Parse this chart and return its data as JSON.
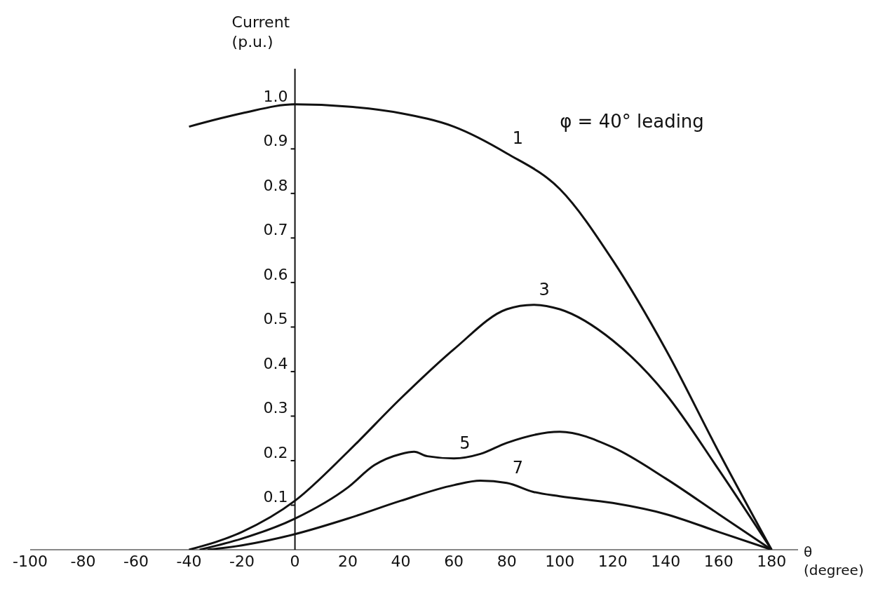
{
  "chart_data": {
    "type": "line",
    "xlabel": "θ (degree)",
    "ylabel": "Current (p.u.)",
    "annotations": [
      "φ = 40° leading"
    ],
    "xlim": [
      -100,
      190
    ],
    "xticks": [
      -100,
      -80,
      -60,
      -40,
      -20,
      0,
      20,
      40,
      60,
      80,
      100,
      120,
      140,
      160,
      180
    ],
    "ylim": [
      0,
      1.08
    ],
    "yticks": [
      0.1,
      0.2,
      0.3,
      0.4,
      0.5,
      0.6,
      0.7,
      0.8,
      0.9,
      {
        "value": 1,
        "label": "1.0"
      }
    ],
    "grid": false,
    "legend": false,
    "marker": "none",
    "line_style": "solid",
    "series": [
      {
        "name": "1",
        "color": "#111111",
        "x": [
          -40,
          -20,
          0,
          20,
          40,
          60,
          80,
          100,
          120,
          140,
          160,
          180
        ],
        "values": [
          0.95,
          0.98,
          1.0,
          0.995,
          0.98,
          0.95,
          0.89,
          0.81,
          0.65,
          0.45,
          0.22,
          0
        ]
      },
      {
        "name": "3",
        "color": "#111111",
        "x": [
          -40,
          -20,
          0,
          20,
          40,
          60,
          80,
          90,
          100,
          120,
          140,
          160,
          180
        ],
        "values": [
          0,
          0.04,
          0.11,
          0.22,
          0.34,
          0.45,
          0.54,
          0.55,
          0.54,
          0.47,
          0.35,
          0.18,
          0
        ]
      },
      {
        "name": "5",
        "color": "#111111",
        "x": [
          -36,
          -20,
          0,
          20,
          30,
          40,
          45,
          50,
          60,
          70,
          80,
          100,
          120,
          140,
          160,
          180
        ],
        "values": [
          0,
          0.025,
          0.07,
          0.14,
          0.19,
          0.215,
          0.22,
          0.21,
          0.205,
          0.215,
          0.24,
          0.265,
          0.23,
          0.16,
          0.08,
          0
        ]
      },
      {
        "name": "7",
        "color": "#111111",
        "x": [
          -33,
          -20,
          0,
          20,
          40,
          60,
          70,
          80,
          90,
          100,
          120,
          140,
          160,
          180
        ],
        "values": [
          0,
          0.01,
          0.035,
          0.07,
          0.11,
          0.145,
          0.155,
          0.15,
          0.13,
          0.12,
          0.105,
          0.08,
          0.04,
          0
        ]
      }
    ]
  }
}
